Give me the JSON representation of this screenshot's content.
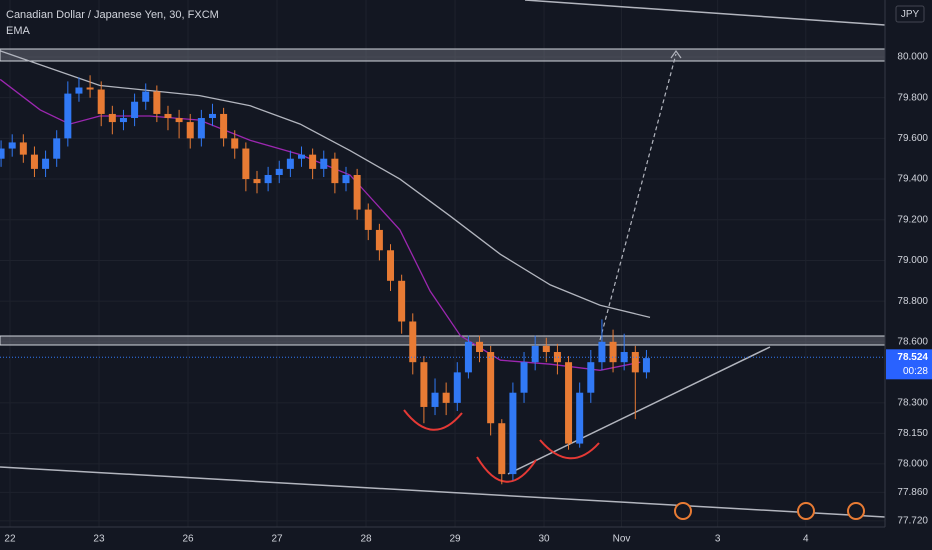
{
  "chart_data": {
    "type": "candlestick",
    "title": "Canadian Dollar / Japanese Yen, 30, FXCM",
    "indicator": "EMA",
    "currency": "JPY",
    "last_price": 78.524,
    "countdown": "00:28",
    "up_color": "#3179f5",
    "down_color": "#e87b34",
    "grid": true,
    "xlim": [
      -0.112,
      9.83
    ],
    "ylim": [
      77.69,
      80.28
    ],
    "xticks": [
      {
        "value": 0,
        "label": "22"
      },
      {
        "value": 1,
        "label": "23"
      },
      {
        "value": 2,
        "label": "26"
      },
      {
        "value": 3,
        "label": "27"
      },
      {
        "value": 4,
        "label": "28"
      },
      {
        "value": 5,
        "label": "29"
      },
      {
        "value": 6,
        "label": "30"
      },
      {
        "value": 6.87,
        "label": "Nov"
      },
      {
        "value": 7.95,
        "label": "3"
      },
      {
        "value": 8.94,
        "label": "4"
      }
    ],
    "yticks": [
      {
        "value": 80,
        "label": "80.000"
      },
      {
        "value": 79.8,
        "label": "79.800"
      },
      {
        "value": 79.6,
        "label": "79.600"
      },
      {
        "value": 79.4,
        "label": "79.400"
      },
      {
        "value": 79.2,
        "label": "79.200"
      },
      {
        "value": 79,
        "label": "79.000"
      },
      {
        "value": 78.8,
        "label": "78.800"
      },
      {
        "value": 78.6,
        "label": "78.600"
      },
      {
        "value": 78.3,
        "label": "78.300"
      },
      {
        "value": 78.15,
        "label": "78.150"
      },
      {
        "value": 78,
        "label": "78.000"
      },
      {
        "value": 77.86,
        "label": "77.860"
      },
      {
        "value": 77.72,
        "label": "77.720"
      }
    ],
    "x": [
      -0.1,
      0.025,
      0.15,
      0.275,
      0.4,
      0.525,
      0.65,
      0.775,
      0.9,
      1.025,
      1.15,
      1.275,
      1.4,
      1.525,
      1.65,
      1.775,
      1.9,
      2.025,
      2.15,
      2.275,
      2.4,
      2.525,
      2.65,
      2.775,
      2.9,
      3.025,
      3.15,
      3.275,
      3.4,
      3.525,
      3.65,
      3.775,
      3.9,
      4.025,
      4.15,
      4.275,
      4.4,
      4.525,
      4.65,
      4.775,
      4.9,
      5.025,
      5.15,
      5.275,
      5.4,
      5.525,
      5.65,
      5.775,
      5.9,
      6.025,
      6.15,
      6.275,
      6.4,
      6.525,
      6.65,
      6.775,
      6.9,
      7.025,
      7.15
    ],
    "open": [
      79.5,
      79.55,
      79.58,
      79.52,
      79.45,
      79.5,
      79.6,
      79.82,
      79.85,
      79.84,
      79.72,
      79.68,
      79.7,
      79.78,
      79.83,
      79.72,
      79.7,
      79.68,
      79.6,
      79.7,
      79.72,
      79.6,
      79.55,
      79.4,
      79.38,
      79.42,
      79.45,
      79.5,
      79.52,
      79.45,
      79.5,
      79.38,
      79.42,
      79.25,
      79.15,
      79.05,
      78.9,
      78.7,
      78.5,
      78.28,
      78.35,
      78.3,
      78.45,
      78.6,
      78.55,
      78.2,
      77.95,
      78.35,
      78.5,
      78.58,
      78.55,
      78.5,
      78.1,
      78.35,
      78.5,
      78.6,
      78.5,
      78.55,
      78.45
    ],
    "high": [
      79.59,
      79.62,
      79.62,
      79.56,
      79.54,
      79.64,
      79.88,
      79.9,
      79.91,
      79.88,
      79.76,
      79.74,
      79.82,
      79.87,
      79.86,
      79.76,
      79.74,
      79.72,
      79.74,
      79.77,
      79.75,
      79.64,
      79.58,
      79.44,
      79.46,
      79.49,
      79.54,
      79.56,
      79.55,
      79.54,
      79.53,
      79.46,
      79.45,
      79.28,
      79.18,
      79.08,
      78.93,
      78.74,
      78.53,
      78.42,
      78.4,
      78.5,
      78.63,
      78.63,
      78.58,
      78.22,
      78.4,
      78.55,
      78.63,
      78.62,
      78.59,
      78.53,
      78.4,
      78.56,
      78.71,
      78.66,
      78.64,
      78.58,
      78.56
    ],
    "low": [
      79.46,
      79.51,
      79.48,
      79.41,
      79.41,
      79.46,
      79.56,
      79.78,
      79.8,
      79.66,
      79.62,
      79.64,
      79.66,
      79.74,
      79.68,
      79.64,
      79.6,
      79.55,
      79.56,
      79.66,
      79.56,
      79.5,
      79.34,
      79.33,
      79.34,
      79.38,
      79.41,
      79.46,
      79.4,
      79.41,
      79.33,
      79.34,
      79.2,
      79.1,
      79.0,
      78.85,
      78.64,
      78.44,
      78.2,
      78.24,
      78.24,
      78.26,
      78.42,
      78.5,
      78.14,
      77.9,
      77.92,
      78.3,
      78.46,
      78.5,
      78.44,
      78.07,
      78.08,
      78.3,
      78.46,
      78.45,
      78.46,
      78.22,
      78.42
    ],
    "close": [
      79.55,
      79.58,
      79.52,
      79.45,
      79.5,
      79.6,
      79.82,
      79.85,
      79.84,
      79.72,
      79.68,
      79.7,
      79.78,
      79.83,
      79.72,
      79.7,
      79.68,
      79.6,
      79.7,
      79.72,
      79.6,
      79.55,
      79.4,
      79.38,
      79.42,
      79.45,
      79.5,
      79.52,
      79.45,
      79.5,
      79.38,
      79.42,
      79.25,
      79.15,
      79.05,
      78.9,
      78.7,
      78.5,
      78.28,
      78.35,
      78.3,
      78.45,
      78.6,
      78.55,
      78.2,
      77.95,
      78.35,
      78.5,
      78.58,
      78.55,
      78.5,
      78.1,
      78.35,
      78.5,
      78.6,
      78.5,
      78.55,
      78.45,
      78.52
    ],
    "series": [
      {
        "color": "#b2b5be",
        "x": [
          -0.11,
          1.01,
          2.13,
          2.7,
          3.26,
          3.82,
          4.38,
          4.94,
          5.51,
          6.07,
          6.63,
          7.19
        ],
        "values": [
          80.03,
          79.86,
          79.81,
          79.76,
          79.67,
          79.54,
          79.4,
          79.22,
          79.03,
          78.88,
          78.78,
          78.72
        ]
      },
      {
        "color": "#9c27b0",
        "x": [
          -0.11,
          0.34,
          0.67,
          1.01,
          1.57,
          2.13,
          2.7,
          3.26,
          3.82,
          4.38,
          4.72,
          5.06,
          5.51,
          6.07,
          6.63,
          7.08
        ],
        "values": [
          79.89,
          79.74,
          79.67,
          79.71,
          79.71,
          79.69,
          79.59,
          79.52,
          79.42,
          79.15,
          78.85,
          78.63,
          78.51,
          78.49,
          78.46,
          78.5
        ]
      }
    ]
  }
}
